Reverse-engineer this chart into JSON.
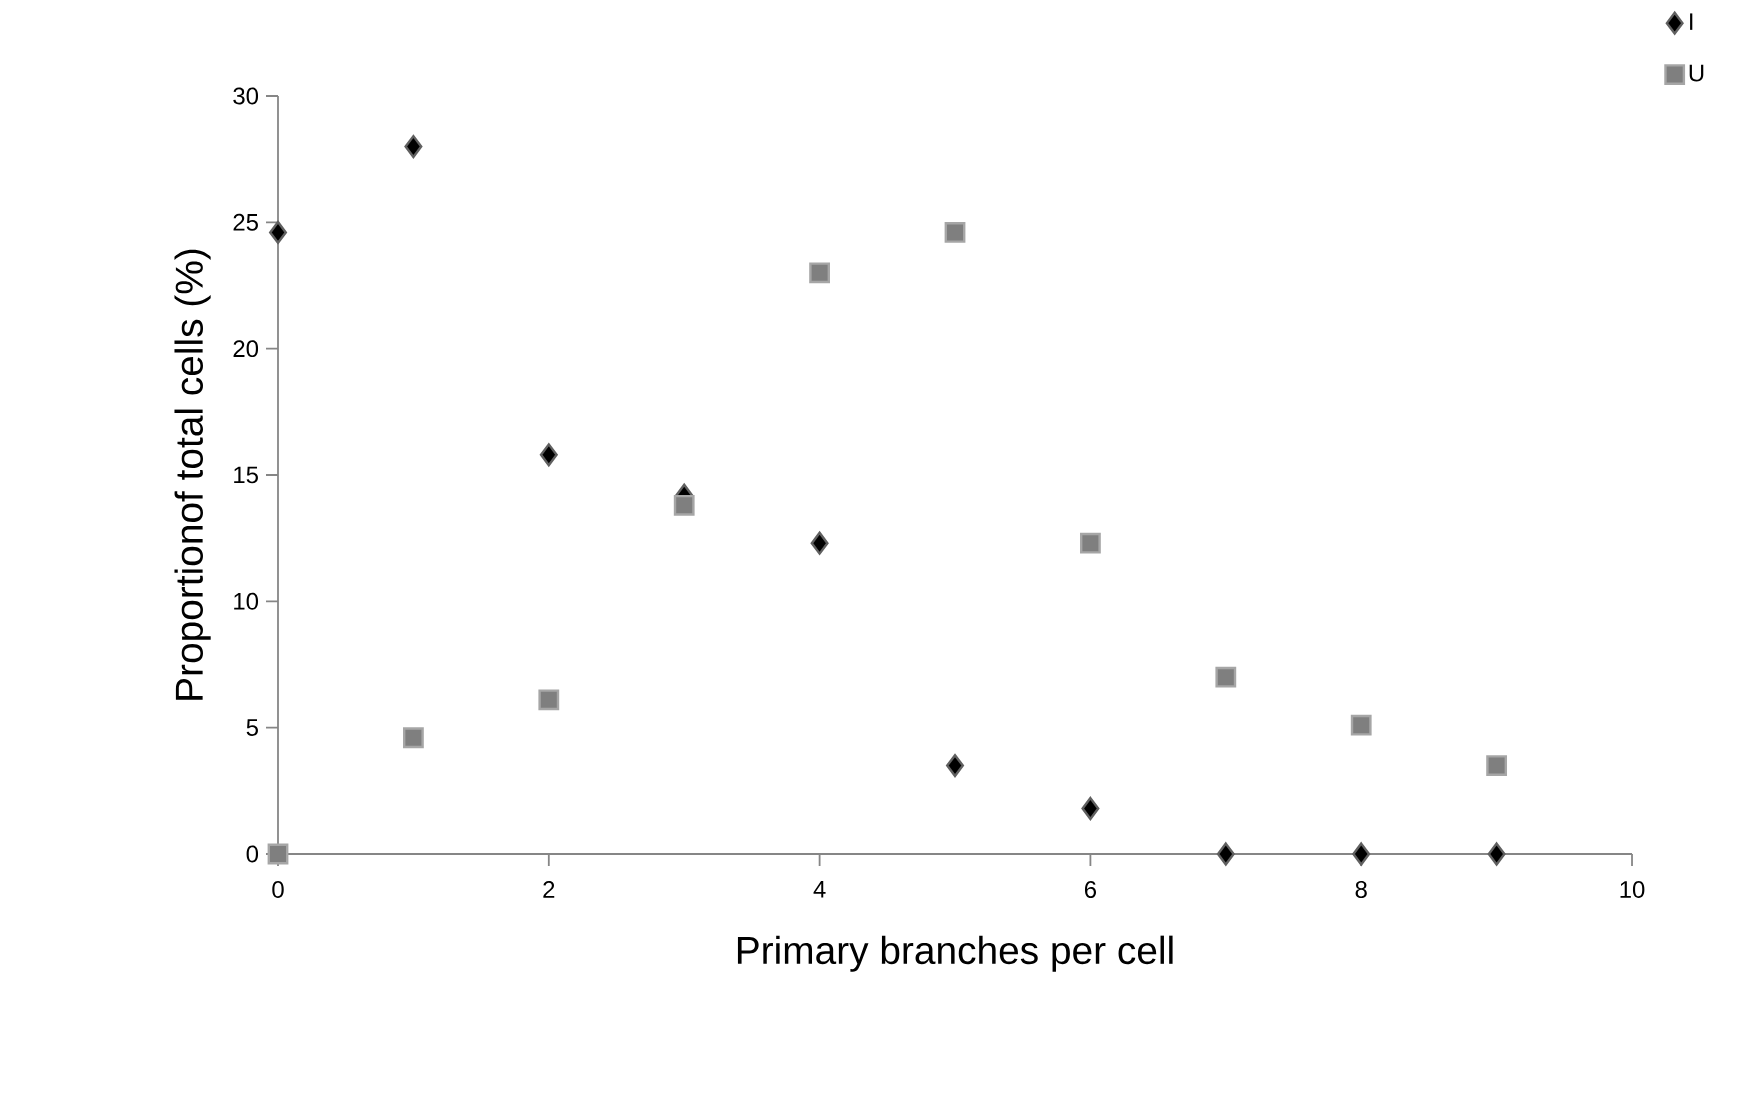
{
  "chart_data": {
    "type": "scatter",
    "xlabel": "Primary branches per cell",
    "ylabel": "Proportionof total cells (%)",
    "x": [
      0,
      1,
      2,
      3,
      4,
      5,
      6,
      7,
      8,
      9
    ],
    "series": [
      {
        "name": "I",
        "color": "#000000",
        "marker": "diamond",
        "values": [
          24.6,
          28,
          15.8,
          14.2,
          12.3,
          3.5,
          1.8,
          0,
          0,
          0
        ]
      },
      {
        "name": "U",
        "color": "#7f7f7f",
        "marker": "square",
        "values": [
          0,
          4.6,
          6.1,
          13.8,
          23,
          24.6,
          12.3,
          7.0,
          5.1,
          3.5
        ]
      }
    ],
    "xlim": [
      0,
      10
    ],
    "xticks": [
      0,
      2,
      4,
      6,
      8,
      10
    ],
    "ylim": [
      0,
      30
    ],
    "yticks": [
      0,
      5,
      10,
      15,
      20,
      25,
      30
    ],
    "legend": "top right"
  }
}
